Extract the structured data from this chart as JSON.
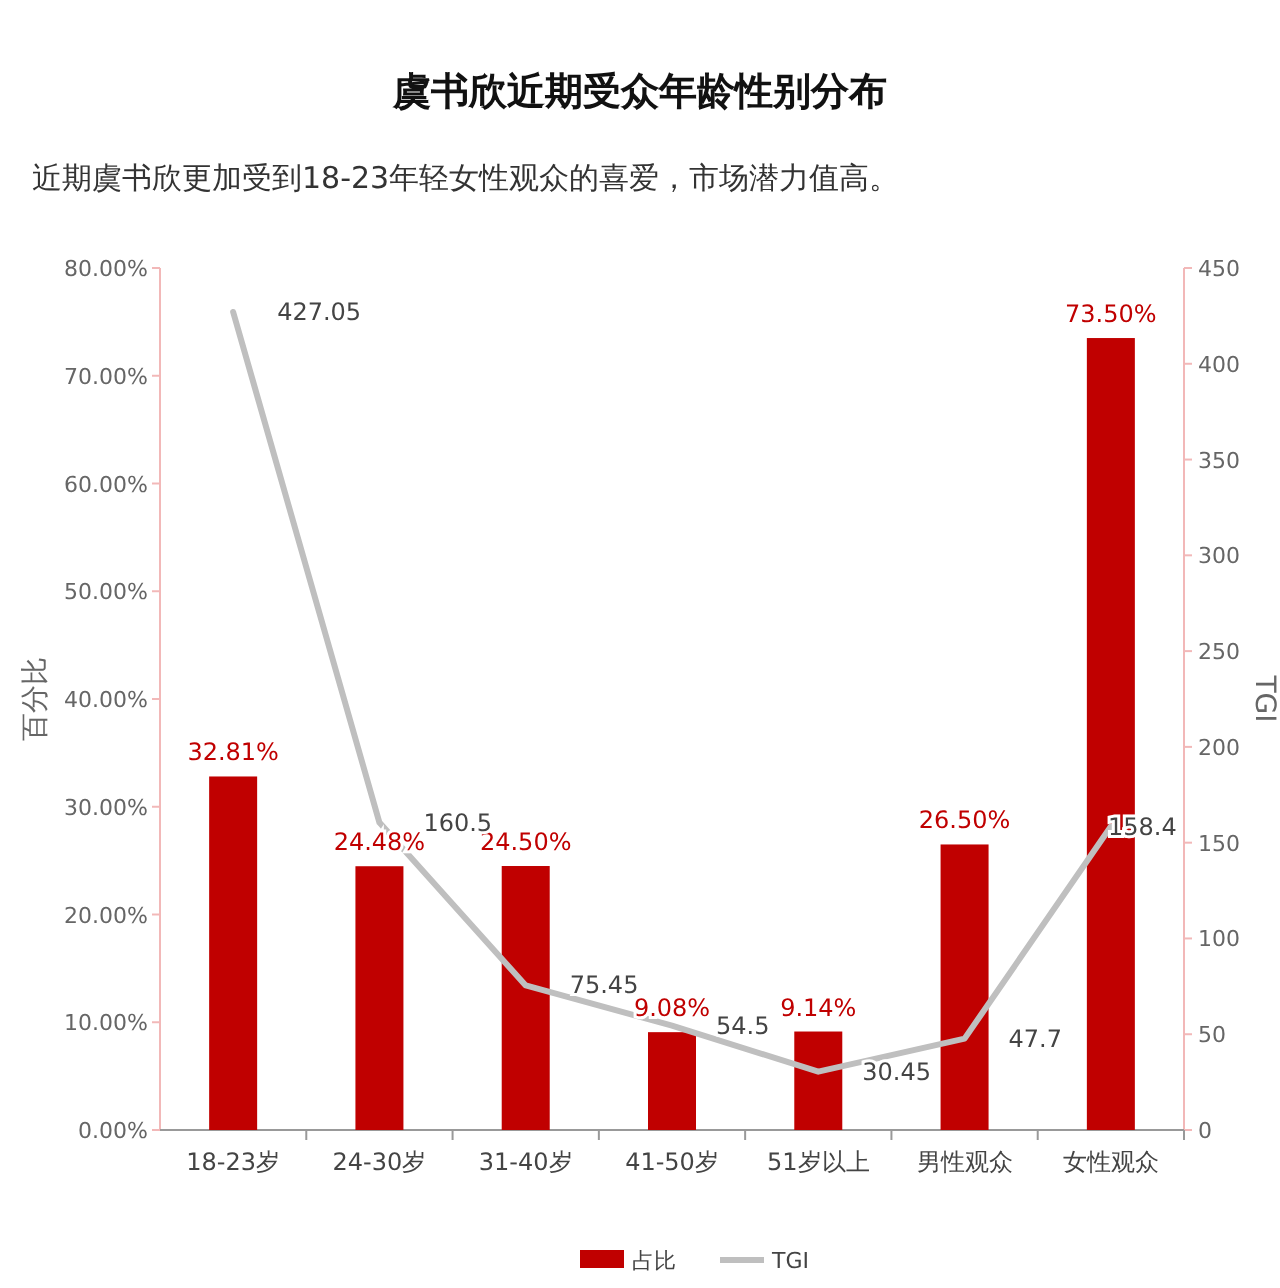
{
  "chart_data": {
    "type": "bar",
    "title": "虞书欣近期受众年龄性别分布",
    "subtitle": "近期虞书欣更加受到18-23年轻女性观众的喜爱，市场潜力值高。",
    "categories": [
      "18-23岁",
      "24-30岁",
      "31-40岁",
      "41-50岁",
      "51岁以上",
      "男性观众",
      "女性观众"
    ],
    "series": [
      {
        "name": "占比",
        "type": "bar",
        "color": "#c00000",
        "values": [
          32.81,
          24.48,
          24.5,
          9.08,
          9.14,
          26.5,
          73.5
        ],
        "value_labels": [
          "32.81%",
          "24.48%",
          "24.50%",
          "9.08%",
          "9.14%",
          "26.50%",
          "73.50%"
        ]
      },
      {
        "name": "TGI",
        "type": "line",
        "axis": "y2",
        "color": "#bfbfbf",
        "values": [
          427.05,
          160.5,
          75.45,
          54.5,
          30.45,
          47.7,
          158.4
        ],
        "value_labels": [
          "427.05",
          "160.5",
          "75.45",
          "54.5",
          "30.45",
          "47.7",
          "158.4"
        ]
      }
    ],
    "ylabel": "百分比",
    "y2label": "TGI",
    "ylim": [
      0,
      80
    ],
    "yticks": [
      {
        "value": 0,
        "label": "0.00%"
      },
      {
        "value": 10,
        "label": "10.00%"
      },
      {
        "value": 20,
        "label": "20.00%"
      },
      {
        "value": 30,
        "label": "30.00%"
      },
      {
        "value": 40,
        "label": "40.00%"
      },
      {
        "value": 50,
        "label": "50.00%"
      },
      {
        "value": 60,
        "label": "60.00%"
      },
      {
        "value": 70,
        "label": "70.00%"
      },
      {
        "value": 80,
        "label": "80.00%"
      }
    ],
    "y2lim": [
      0,
      450
    ],
    "y2ticks": [
      0,
      50,
      100,
      150,
      200,
      250,
      300,
      350,
      400,
      450
    ],
    "legend": "bottom"
  }
}
